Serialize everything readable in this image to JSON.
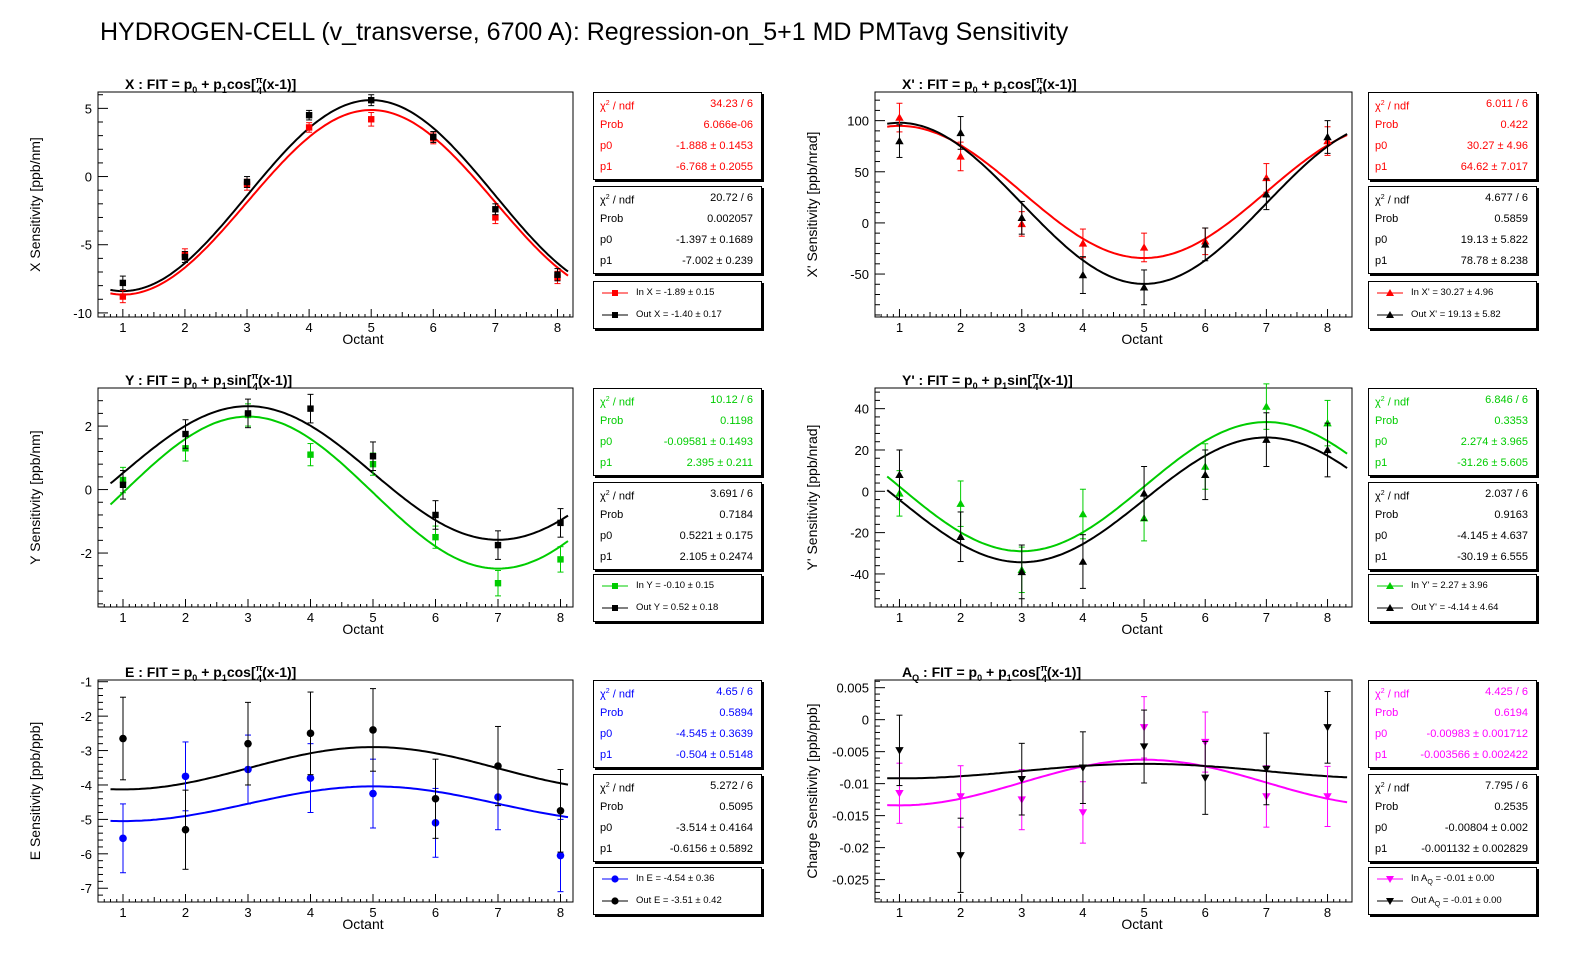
{
  "page": {
    "title": "HYDROGEN-CELL (v_transverse, 6700 A): Regression-on_5+1 MD PMTavg Sensitivity"
  },
  "fit_formula": {
    "prefix": " : FIT = p",
    "sub0": "0",
    "mid": " + p",
    "sub1": "1",
    "frac_num": "π",
    "frac_den": "4",
    "tail": "(x-1)]"
  },
  "chart_data": [
    {
      "type": "scatter",
      "title": {
        "name": "X",
        "sub": "",
        "func": "cos["
      },
      "xlabel": "Octant",
      "ylabel": "X Sensitivity [ppb/nm]",
      "xlim": [
        0.6,
        8.25
      ],
      "ylim": [
        -10.3,
        6.2
      ],
      "xticks": [
        1,
        2,
        3,
        4,
        5,
        6,
        7,
        8
      ],
      "yticks": [
        -10,
        -5,
        0,
        5
      ],
      "yticklabels": [
        "-10",
        "-5",
        "0",
        "5"
      ],
      "grid": false,
      "series": [
        {
          "name": "In X",
          "color": "#ff0000",
          "marker": "square",
          "p0": -1.888,
          "p1": -6.768,
          "func": "cos",
          "x": [
            1,
            2,
            3,
            4,
            5,
            6,
            7,
            8
          ],
          "y": [
            -8.8,
            -5.7,
            -0.6,
            3.6,
            4.2,
            2.8,
            -3.0,
            -7.4
          ],
          "err": [
            0.45,
            0.4,
            0.4,
            0.35,
            0.5,
            0.4,
            0.45,
            0.45
          ]
        },
        {
          "name": "Out X",
          "color": "#000000",
          "marker": "square",
          "p0": -1.397,
          "p1": -7.002,
          "func": "cos",
          "x": [
            1,
            2,
            3,
            4,
            5,
            6,
            7,
            8
          ],
          "y": [
            -7.8,
            -5.9,
            -0.4,
            4.5,
            5.6,
            2.9,
            -2.4,
            -7.2
          ],
          "err": [
            0.5,
            0.4,
            0.4,
            0.35,
            0.4,
            0.4,
            0.4,
            0.45
          ]
        }
      ],
      "stats": [
        {
          "chi2_label": "χ",
          "chi2_sup": "2",
          "chi2_rest": " / ndf",
          "chi2": "34.23 / 6",
          "prob_label": "Prob",
          "prob": "6.066e-06",
          "p0_label": "p0",
          "p0": "-1.888 ± 0.1453",
          "p1_label": "p1",
          "p1": "-6.768 ± 0.2055"
        },
        {
          "chi2_label": "χ",
          "chi2_sup": "2",
          "chi2_rest": " / ndf",
          "chi2": "20.72 / 6",
          "prob_label": "Prob",
          "prob": "0.002057",
          "p0_label": "p0",
          "p0": "-1.397 ± 0.1689",
          "p1_label": "p1",
          "p1": "-7.002 ± 0.239"
        }
      ],
      "legend": [
        {
          "text": "In X = -1.89 ± 0.15"
        },
        {
          "text": "Out X = -1.40 ± 0.17"
        }
      ]
    },
    {
      "type": "scatter",
      "title": {
        "name": "X'",
        "sub": "",
        "func": "cos["
      },
      "xlabel": "Octant",
      "ylabel": "X' Sensitivity [ppb/nrad]",
      "xlim": [
        0.6,
        8.4
      ],
      "ylim": [
        -92,
        128
      ],
      "xticks": [
        1,
        2,
        3,
        4,
        5,
        6,
        7,
        8
      ],
      "yticks": [
        -50,
        0,
        50,
        100
      ],
      "yticklabels": [
        "-50",
        "0",
        "50",
        "100"
      ],
      "grid": false,
      "series": [
        {
          "name": "In X'",
          "color": "#ff0000",
          "marker": "triangle-up",
          "p0": 30.27,
          "p1": 64.62,
          "func": "cos",
          "x": [
            1,
            2,
            3,
            4,
            5,
            6,
            7,
            8
          ],
          "y": [
            103,
            65,
            -1,
            -20,
            -24,
            -18,
            44,
            80
          ],
          "err": [
            14,
            14,
            12,
            14,
            14,
            13,
            14,
            14
          ]
        },
        {
          "name": "Out X'",
          "color": "#000000",
          "marker": "triangle-up",
          "p0": 19.13,
          "p1": 78.78,
          "func": "cos",
          "x": [
            1,
            2,
            3,
            4,
            5,
            6,
            7,
            8
          ],
          "y": [
            80,
            88,
            5,
            -51,
            -63,
            -21,
            28,
            84
          ],
          "err": [
            16,
            16,
            16,
            18,
            17,
            16,
            15,
            16
          ]
        }
      ],
      "stats": [
        {
          "chi2_label": "χ",
          "chi2_sup": "2",
          "chi2_rest": " / ndf",
          "chi2": "6.011 / 6",
          "prob_label": "Prob",
          "prob": "0.422",
          "p0_label": "p0",
          "p0": "30.27 ±  4.96",
          "p1_label": "p1",
          "p1": "64.62 ± 7.017"
        },
        {
          "chi2_label": "χ",
          "chi2_sup": "2",
          "chi2_rest": " / ndf",
          "chi2": "4.677 / 6",
          "prob_label": "Prob",
          "prob": "0.5859",
          "p0_label": "p0",
          "p0": "19.13 ± 5.822",
          "p1_label": "p1",
          "p1": "78.78 ± 8.238"
        }
      ],
      "legend": [
        {
          "text": "In X' = 30.27 ± 4.96"
        },
        {
          "text": "Out X' = 19.13 ± 5.82"
        }
      ]
    },
    {
      "type": "scatter",
      "title": {
        "name": "Y",
        "sub": "",
        "func": "sin["
      },
      "xlabel": "Octant",
      "ylabel": "Y Sensitivity [ppb/nm]",
      "xlim": [
        0.6,
        8.2
      ],
      "ylim": [
        -3.7,
        3.2
      ],
      "xticks": [
        1,
        2,
        3,
        4,
        5,
        6,
        7,
        8
      ],
      "yticks": [
        -2,
        0,
        2
      ],
      "yticklabels": [
        "-2",
        "0",
        "2"
      ],
      "grid": false,
      "series": [
        {
          "name": "In Y",
          "color": "#00cc00",
          "marker": "square",
          "p0": -0.09581,
          "p1": 2.395,
          "func": "sin",
          "x": [
            1,
            2,
            3,
            4,
            5,
            6,
            7,
            8
          ],
          "y": [
            0.3,
            1.3,
            2.35,
            1.1,
            0.8,
            -1.5,
            -2.95,
            -2.2
          ],
          "err": [
            0.4,
            0.4,
            0.35,
            0.35,
            0.35,
            0.35,
            0.4,
            0.4
          ]
        },
        {
          "name": "Out Y",
          "color": "#000000",
          "marker": "square",
          "p0": 0.5221,
          "p1": 2.105,
          "func": "sin",
          "x": [
            1,
            2,
            3,
            4,
            5,
            6,
            7,
            8
          ],
          "y": [
            0.15,
            1.75,
            2.4,
            2.55,
            1.05,
            -0.8,
            -1.75,
            -1.05
          ],
          "err": [
            0.45,
            0.45,
            0.45,
            0.45,
            0.45,
            0.45,
            0.45,
            0.45
          ]
        }
      ],
      "stats": [
        {
          "chi2_label": "χ",
          "chi2_sup": "2",
          "chi2_rest": " / ndf",
          "chi2": "10.12 / 6",
          "prob_label": "Prob",
          "prob": "0.1198",
          "p0_label": "p0",
          "p0": "-0.09581 ± 0.1493",
          "p1_label": "p1",
          "p1": "2.395 ± 0.211"
        },
        {
          "chi2_label": "χ",
          "chi2_sup": "2",
          "chi2_rest": " / ndf",
          "chi2": "3.691 / 6",
          "prob_label": "Prob",
          "prob": "0.7184",
          "p0_label": "p0",
          "p0": "0.5221 ± 0.175",
          "p1_label": "p1",
          "p1": "2.105 ± 0.2474"
        }
      ],
      "legend": [
        {
          "text": "In Y = -0.10 ± 0.15"
        },
        {
          "text": "Out Y = 0.52 ± 0.18"
        }
      ]
    },
    {
      "type": "scatter",
      "title": {
        "name": "Y'",
        "sub": "",
        "func": "sin["
      },
      "xlabel": "Octant",
      "ylabel": "Y' Sensitivity [ppb/nrad]",
      "xlim": [
        0.6,
        8.4
      ],
      "ylim": [
        -56,
        50
      ],
      "xticks": [
        1,
        2,
        3,
        4,
        5,
        6,
        7,
        8
      ],
      "yticks": [
        -40,
        -20,
        0,
        20,
        40
      ],
      "yticklabels": [
        "-40",
        "-20",
        "0",
        "20",
        "40"
      ],
      "grid": false,
      "series": [
        {
          "name": "In Y'",
          "color": "#00cc00",
          "marker": "triangle-up",
          "p0": 2.274,
          "p1": -31.26,
          "func": "sin",
          "x": [
            1,
            2,
            3,
            4,
            5,
            6,
            7,
            8
          ],
          "y": [
            -1,
            -6,
            -38,
            -11,
            -13,
            12,
            41,
            33
          ],
          "err": [
            11,
            11,
            11,
            12,
            11,
            11,
            11,
            11
          ]
        },
        {
          "name": "Out Y'",
          "color": "#000000",
          "marker": "triangle-up",
          "p0": -4.145,
          "p1": -30.19,
          "func": "sin",
          "x": [
            1,
            2,
            3,
            4,
            5,
            6,
            7,
            8
          ],
          "y": [
            8,
            -22,
            -39,
            -34,
            -1,
            8,
            25,
            20
          ],
          "err": [
            12,
            12,
            13,
            13,
            13,
            12,
            13,
            13
          ]
        }
      ],
      "stats": [
        {
          "chi2_label": "χ",
          "chi2_sup": "2",
          "chi2_rest": " / ndf",
          "chi2": "6.846 / 6",
          "prob_label": "Prob",
          "prob": "0.3353",
          "p0_label": "p0",
          "p0": "2.274 ± 3.965",
          "p1_label": "p1",
          "p1": "-31.26 ± 5.605"
        },
        {
          "chi2_label": "χ",
          "chi2_sup": "2",
          "chi2_rest": " / ndf",
          "chi2": "2.037 / 6",
          "prob_label": "Prob",
          "prob": "0.9163",
          "p0_label": "p0",
          "p0": "-4.145 ± 4.637",
          "p1_label": "p1",
          "p1": "-30.19 ± 6.555"
        }
      ],
      "legend": [
        {
          "text": "In Y' = 2.27 ± 3.96"
        },
        {
          "text": "Out Y' = -4.14 ± 4.64"
        }
      ]
    },
    {
      "type": "scatter",
      "title": {
        "name": "E",
        "sub": "",
        "func": "cos["
      },
      "xlabel": "Octant",
      "ylabel": "E Sensitivity [ppb/ppb]",
      "xlim": [
        0.6,
        8.2
      ],
      "ylim": [
        -7.4,
        -0.95
      ],
      "xticks": [
        1,
        2,
        3,
        4,
        5,
        6,
        7,
        8
      ],
      "yticks": [
        -7,
        -6,
        -5,
        -4,
        -3,
        -2,
        -1
      ],
      "yticklabels": [
        "-7",
        "-6",
        "-5",
        "-4",
        "-3",
        "-2",
        "-1"
      ],
      "grid": false,
      "series": [
        {
          "name": "In E",
          "color": "#0000ff",
          "marker": "circle",
          "p0": -4.545,
          "p1": -0.504,
          "func": "cos",
          "x": [
            1,
            2,
            3,
            4,
            5,
            6,
            7,
            8
          ],
          "y": [
            -5.55,
            -3.75,
            -3.55,
            -3.8,
            -4.25,
            -5.1,
            -4.35,
            -6.05
          ],
          "err": [
            1.0,
            1.0,
            1.0,
            1.0,
            1.0,
            1.0,
            0.95,
            1.05
          ]
        },
        {
          "name": "Out E",
          "color": "#000000",
          "marker": "circle",
          "p0": -3.514,
          "p1": -0.6156,
          "func": "cos",
          "x": [
            1,
            2,
            3,
            4,
            5,
            6,
            7,
            8
          ],
          "y": [
            -2.65,
            -5.3,
            -2.8,
            -2.5,
            -2.4,
            -4.4,
            -3.45,
            -4.75
          ],
          "err": [
            1.2,
            1.15,
            1.2,
            1.2,
            1.2,
            1.15,
            1.15,
            1.2
          ]
        }
      ],
      "stats": [
        {
          "chi2_label": "χ",
          "chi2_sup": "2",
          "chi2_rest": " / ndf",
          "chi2": "4.65 / 6",
          "prob_label": "Prob",
          "prob": "0.5894",
          "p0_label": "p0",
          "p0": "-4.545 ± 0.3639",
          "p1_label": "p1",
          "p1": "-0.504 ± 0.5148"
        },
        {
          "chi2_label": "χ",
          "chi2_sup": "2",
          "chi2_rest": " / ndf",
          "chi2": "5.272 / 6",
          "prob_label": "Prob",
          "prob": "0.5095",
          "p0_label": "p0",
          "p0": "-3.514 ± 0.4164",
          "p1_label": "p1",
          "p1": "-0.6156 ± 0.5892"
        }
      ],
      "legend": [
        {
          "text": "In E = -4.54 ± 0.36"
        },
        {
          "text": "Out E = -3.51 ± 0.42"
        }
      ]
    },
    {
      "type": "scatter",
      "title": {
        "name": "A",
        "sub": "Q",
        "func": "cos["
      },
      "xlabel": "Octant",
      "ylabel": "Charge Sensitivity [ppb/ppb]",
      "xlim": [
        0.6,
        8.4
      ],
      "ylim": [
        -0.0285,
        0.0062
      ],
      "xticks": [
        1,
        2,
        3,
        4,
        5,
        6,
        7,
        8
      ],
      "yticks": [
        -0.025,
        -0.02,
        -0.015,
        -0.01,
        -0.005,
        0,
        0.005
      ],
      "yticklabels": [
        "-0.025",
        "-0.02",
        "-0.015",
        "-0.01",
        "-0.005",
        "0",
        "0.005"
      ],
      "grid": false,
      "series": [
        {
          "name": "In A_Q",
          "color": "#ff00ff",
          "marker": "triangle-down",
          "p0": -0.00983,
          "p1": -0.003566,
          "func": "cos",
          "x": [
            1,
            2,
            3,
            4,
            5,
            6,
            7,
            8
          ],
          "y": [
            -0.0115,
            -0.012,
            -0.0125,
            -0.0145,
            -0.0012,
            -0.0035,
            -0.012,
            -0.012
          ],
          "err": [
            0.0047,
            0.0048,
            0.0047,
            0.0048,
            0.0048,
            0.0047,
            0.0048,
            0.0047
          ]
        },
        {
          "name": "Out A_Q",
          "color": "#000000",
          "marker": "triangle-down",
          "p0": -0.00804,
          "p1": -0.001132,
          "func": "cos",
          "x": [
            1,
            2,
            3,
            4,
            5,
            6,
            7,
            8
          ],
          "y": [
            -0.0048,
            -0.0212,
            -0.0093,
            -0.0075,
            -0.0042,
            -0.0091,
            -0.0077,
            -0.0012
          ],
          "err": [
            0.0055,
            0.0058,
            0.0056,
            0.0056,
            0.0057,
            0.0057,
            0.0056,
            0.0056
          ]
        }
      ],
      "stats": [
        {
          "chi2_label": "χ",
          "chi2_sup": "2",
          "chi2_rest": " / ndf",
          "chi2": "4.425 / 6",
          "prob_label": "Prob",
          "prob": "0.6194",
          "p0_label": "p0",
          "p0": "-0.00983 ± 0.001712",
          "p1_label": "p1",
          "p1": "-0.003566 ± 0.002422"
        },
        {
          "chi2_label": "χ",
          "chi2_sup": "2",
          "chi2_rest": " / ndf",
          "chi2": "7.795 / 6",
          "prob_label": "Prob",
          "prob": "0.2535",
          "p0_label": "p0",
          "p0": "-0.00804 ± 0.002",
          "p1_label": "p1",
          "p1": "-0.001132 ± 0.002829"
        }
      ],
      "legend": [
        {
          "text": "In A",
          "sub": "Q",
          "tail": " = -0.01 ± 0.00"
        },
        {
          "text": "Out A",
          "sub": "Q",
          "tail": " = -0.01 ± 0.00"
        }
      ]
    }
  ]
}
